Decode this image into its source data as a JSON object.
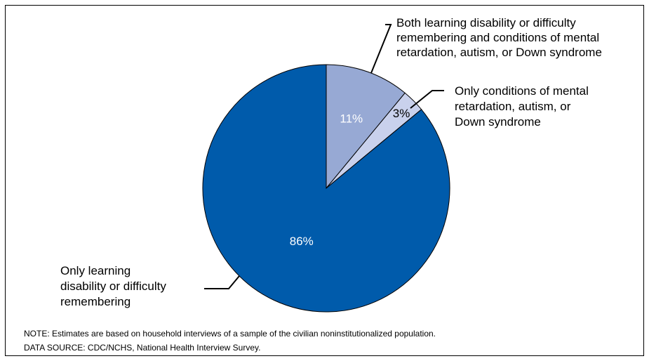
{
  "chart_data": {
    "type": "pie",
    "start_angle_deg": 0,
    "direction": "clockwise",
    "slices": [
      {
        "label_lines": [
          "Both learning disability or difficulty",
          "remembering and conditions of mental",
          "retardation, autism, or Down syndrome"
        ],
        "value": 11,
        "value_label": "11%",
        "color": "#97a9d4",
        "value_text_color": "#ffffff"
      },
      {
        "label_lines": [
          "Only conditions of mental",
          "retardation, autism, or",
          "Down syndrome"
        ],
        "value": 3,
        "value_label": "3%",
        "color": "#c9d1ec",
        "value_text_color": "#000000"
      },
      {
        "label_lines": [
          "Only learning",
          "disability or difficulty",
          "remembering"
        ],
        "value": 86,
        "value_label": "86%",
        "color": "#005bab",
        "value_text_color": "#ffffff"
      }
    ]
  },
  "footer": {
    "note": "NOTE: Estimates are based on household interviews of a sample of the civilian noninstitutionalized population.",
    "source": "DATA SOURCE: CDC/NCHS, National Health Interview Survey."
  }
}
